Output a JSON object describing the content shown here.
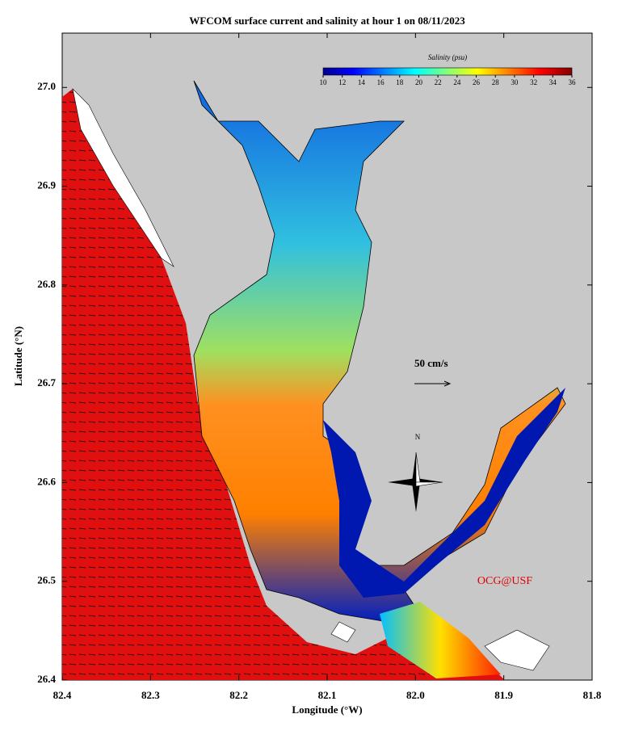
{
  "map": {
    "title": "WFCOM surface current and salinity at hour 1 on 08/11/2023",
    "x_label": "Longitude (°W)",
    "y_label": "Latitude (°N)",
    "xlim": [
      82.4,
      81.8
    ],
    "ylim": [
      26.4,
      27.055
    ],
    "xticks": [
      82.4,
      82.3,
      82.2,
      82.1,
      {
        "value": 82.0,
        "label": "82.0"
      },
      81.9,
      81.8
    ],
    "yticks": [
      26.4,
      26.5,
      26.6,
      26.7,
      26.8,
      26.9,
      {
        "value": 27.0,
        "label": "27.0"
      }
    ],
    "colorbar": {
      "title": "Salinity (psu)",
      "ticks": [
        10,
        12,
        14,
        16,
        18,
        20,
        22,
        24,
        26,
        28,
        30,
        32,
        34,
        36
      ]
    },
    "scale_label": "50 cm/s",
    "compass_label": "N",
    "credit": "OCG@USF"
  }
}
